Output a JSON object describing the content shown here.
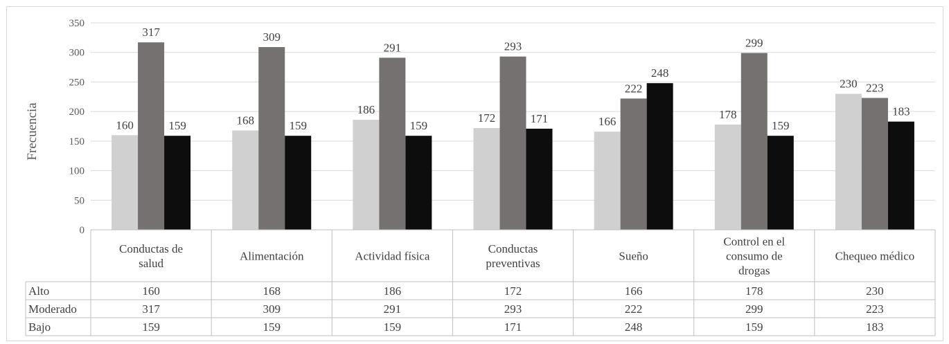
{
  "chart_data": {
    "type": "bar",
    "title": "",
    "xlabel": "",
    "ylabel": "Frecuencia",
    "ylim": [
      0,
      350
    ],
    "yticks": [
      0,
      50,
      100,
      150,
      200,
      250,
      300,
      350
    ],
    "grid": true,
    "legend": "data-table",
    "categories": [
      [
        "Conductas de",
        "salud"
      ],
      [
        "Alimentación"
      ],
      [
        "Actividad física"
      ],
      [
        "Conductas",
        "preventivas"
      ],
      [
        "Sueño"
      ],
      [
        "Control en el",
        "consumo de",
        "drogas"
      ],
      [
        "Chequeo médico"
      ]
    ],
    "series": [
      {
        "name": "Alto",
        "color": "#d0d0d0",
        "values": [
          160,
          168,
          186,
          172,
          166,
          178,
          230
        ]
      },
      {
        "name": "Moderado",
        "color": "#767171",
        "values": [
          317,
          309,
          291,
          293,
          222,
          299,
          223
        ]
      },
      {
        "name": "Bajo",
        "color": "#0d0d0d",
        "values": [
          159,
          159,
          159,
          171,
          248,
          159,
          183
        ]
      }
    ]
  }
}
